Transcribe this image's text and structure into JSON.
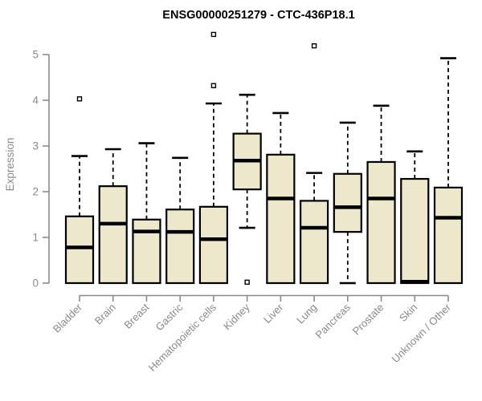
{
  "chart_data": {
    "type": "boxplot",
    "title": "ENSG00000251279 - CTC-436P18.1",
    "ylabel": "Expression",
    "xlabel": "",
    "ylim": [
      0,
      5
    ],
    "yticks": [
      0,
      1,
      2,
      3,
      4,
      5
    ],
    "grid": false,
    "legend": "none",
    "box_fill_color": "#EDE7CB",
    "box_stroke_color": "#000000",
    "axis_color": "#8A8A8A",
    "categories": [
      "Bladder",
      "Brain",
      "Breast",
      "Gastric",
      "Hematopoietic cells",
      "Kidney",
      "Liver",
      "Lung",
      "Pancreas",
      "Prostate",
      "Skin",
      "Unknown / Other"
    ],
    "series": [
      {
        "category": "Bladder",
        "whisker_low": 0,
        "q1": 0,
        "median": 0.78,
        "q3": 1.46,
        "whisker_high": 2.78,
        "outliers": [
          4.03
        ]
      },
      {
        "category": "Brain",
        "whisker_low": 0,
        "q1": 0,
        "median": 1.3,
        "q3": 2.12,
        "whisker_high": 2.93,
        "outliers": []
      },
      {
        "category": "Breast",
        "whisker_low": 0,
        "q1": 0,
        "median": 1.13,
        "q3": 1.39,
        "whisker_high": 3.06,
        "outliers": []
      },
      {
        "category": "Gastric",
        "whisker_low": 0,
        "q1": 0,
        "median": 1.12,
        "q3": 1.61,
        "whisker_high": 2.74,
        "outliers": []
      },
      {
        "category": "Hematopoietic cells",
        "whisker_low": 0,
        "q1": 0,
        "median": 0.96,
        "q3": 1.67,
        "whisker_high": 3.93,
        "outliers": [
          5.44,
          4.32
        ]
      },
      {
        "category": "Kidney",
        "whisker_low": 1.21,
        "q1": 2.05,
        "median": 2.68,
        "q3": 3.27,
        "whisker_high": 4.12,
        "outliers": [
          0.02
        ]
      },
      {
        "category": "Liver",
        "whisker_low": 0,
        "q1": 0,
        "median": 1.85,
        "q3": 2.81,
        "whisker_high": 3.72,
        "outliers": []
      },
      {
        "category": "Lung",
        "whisker_low": 0,
        "q1": 0,
        "median": 1.21,
        "q3": 1.8,
        "whisker_high": 2.41,
        "outliers": [
          5.19
        ]
      },
      {
        "category": "Pancreas",
        "whisker_low": 0,
        "q1": 1.12,
        "median": 1.66,
        "q3": 2.39,
        "whisker_high": 3.51,
        "outliers": []
      },
      {
        "category": "Prostate",
        "whisker_low": 0,
        "q1": 0,
        "median": 1.85,
        "q3": 2.65,
        "whisker_high": 3.88,
        "outliers": []
      },
      {
        "category": "Skin",
        "whisker_low": 0,
        "q1": 0,
        "median": 0.03,
        "q3": 2.28,
        "whisker_high": 2.88,
        "outliers": []
      },
      {
        "category": "Unknown / Other",
        "whisker_low": 0,
        "q1": 0,
        "median": 1.43,
        "q3": 2.09,
        "whisker_high": 4.92,
        "outliers": []
      }
    ]
  }
}
